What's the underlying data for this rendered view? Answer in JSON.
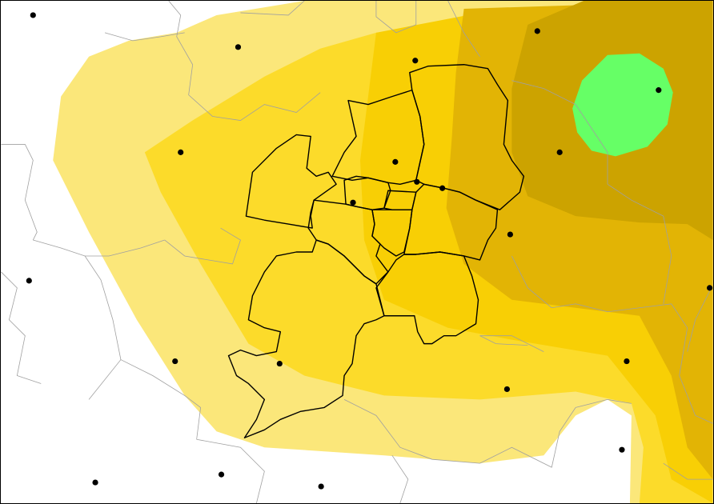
{
  "map": {
    "type": "interpolated-heatmap",
    "legend": null,
    "colors": {
      "background": "#ffffff",
      "band_lightest": "#fbe77a",
      "band_light": "#fcdb2a",
      "band_mid": "#f8cf05",
      "band_dark": "#e2b405",
      "band_darkest": "#cca300",
      "peak_highlight": "#66ff66",
      "district_border": "#000000",
      "municipality_border": "#a0a0a0",
      "station_marker": "#000000"
    },
    "station_count": 22
  }
}
